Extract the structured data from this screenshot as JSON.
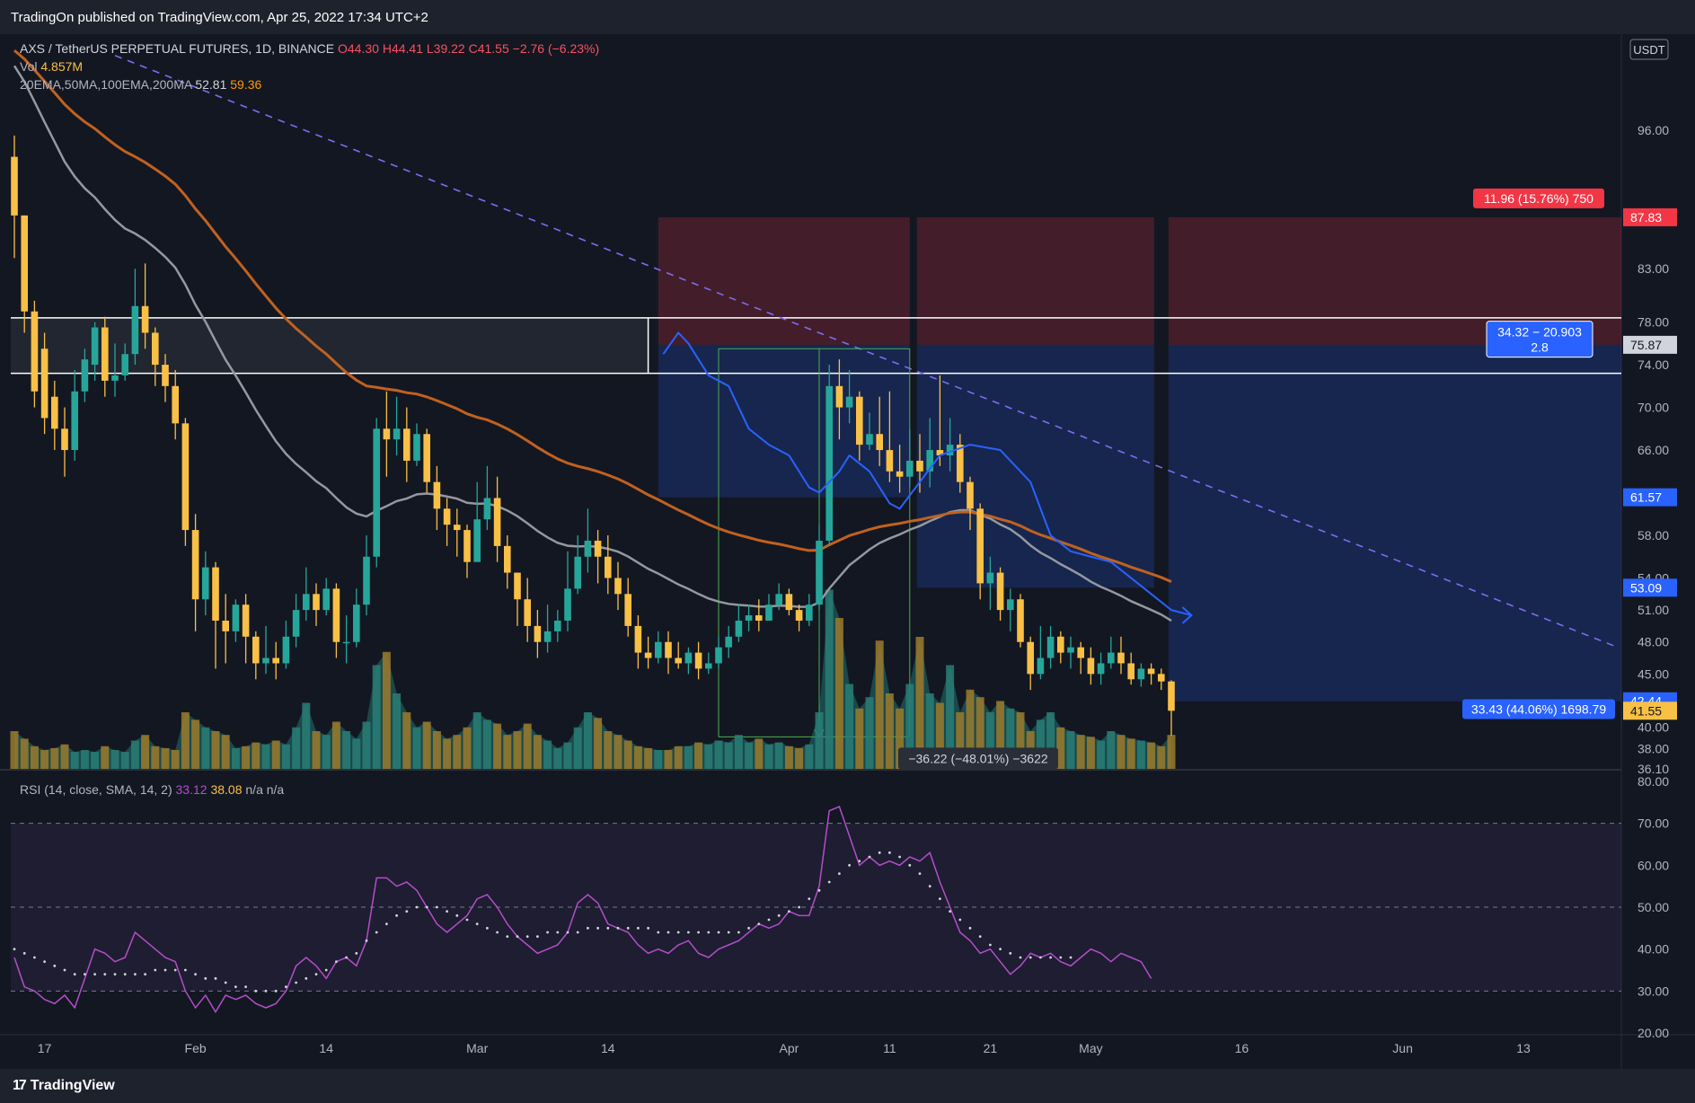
{
  "header": {
    "published": "TradingOn published on TradingView.com, Apr 25, 2022 17:34 UTC+2"
  },
  "footer": {
    "brand": "TradingView"
  },
  "legend": {
    "symbol": "AXS / TetherUS PERPETUAL FUTURES, 1D, BINANCE",
    "o": "O44.30",
    "h": "H44.41",
    "l": "L39.22",
    "c": "C41.55",
    "chg": "−2.76 (−6.23%)",
    "vol_label": "Vol",
    "vol_value": "4.857M",
    "ma_label": "20EMA,50MA,100EMA,200MA",
    "ma_v1": "52.81",
    "ma_v2": "59.36",
    "rsi_label": "RSI (14, close, SMA, 14, 2)",
    "rsi_v1": "33.12",
    "rsi_v2": "38.08",
    "rsi_na": "n/a n/a"
  },
  "chart_data": {
    "type": "candlestick",
    "currency": "USDT",
    "y_range": [
      36.1,
      104.5
    ],
    "y_ticks": [
      {
        "v": 96,
        "t": "96.00"
      },
      {
        "v": 83,
        "t": "83.00"
      },
      {
        "v": 78,
        "t": "78.00"
      },
      {
        "v": 74,
        "t": "74.00"
      },
      {
        "v": 70,
        "t": "70.00"
      },
      {
        "v": 66,
        "t": "66.00"
      },
      {
        "v": 58,
        "t": "58.00"
      },
      {
        "v": 54,
        "t": "54.00"
      },
      {
        "v": 51,
        "t": "51.00"
      },
      {
        "v": 48,
        "t": "48.00"
      },
      {
        "v": 45,
        "t": "45.00"
      },
      {
        "v": 40,
        "t": "40.00"
      },
      {
        "v": 38,
        "t": "38.00"
      },
      {
        "v": 36.1,
        "t": "36.10"
      }
    ],
    "price_labels": [
      {
        "v": 87.83,
        "t": "87.83",
        "color": "#f23645"
      },
      {
        "v": 75.87,
        "t": "75.87",
        "color": "#d1d4dc"
      },
      {
        "v": 61.57,
        "t": "61.57",
        "color": "#2962ff"
      },
      {
        "v": 53.09,
        "t": "53.09",
        "color": "#2962ff"
      },
      {
        "v": 42.44,
        "t": "42.44",
        "color": "#2962ff"
      },
      {
        "v": 41.55,
        "t": "41.55",
        "color": "#f9c046"
      }
    ],
    "x_ticks": [
      {
        "d": 3,
        "t": "17"
      },
      {
        "d": 18,
        "t": "Feb"
      },
      {
        "d": 31,
        "t": "14"
      },
      {
        "d": 46,
        "t": "Mar"
      },
      {
        "d": 59,
        "t": "14"
      },
      {
        "d": 77,
        "t": "Apr"
      },
      {
        "d": 87,
        "t": "11"
      },
      {
        "d": 97,
        "t": "21"
      },
      {
        "d": 107,
        "t": "May"
      },
      {
        "d": 122,
        "t": "16"
      },
      {
        "d": 138,
        "t": "Jun"
      },
      {
        "d": 150,
        "t": "13"
      }
    ],
    "candles": [
      [
        93.5,
        88.0,
        95.5,
        84.0
      ],
      [
        88.0,
        79.0,
        88.0,
        77.0
      ],
      [
        79.0,
        71.5,
        80.0,
        70.0
      ],
      [
        75.5,
        69.0,
        77.0,
        67.5
      ],
      [
        71.0,
        68.0,
        72.5,
        66.0
      ],
      [
        68.0,
        66.0,
        70.0,
        63.5
      ],
      [
        66.0,
        71.5,
        73.5,
        65.0
      ],
      [
        71.5,
        74.5,
        75.5,
        70.5
      ],
      [
        74.0,
        77.5,
        78.0,
        72.5
      ],
      [
        77.5,
        72.5,
        78.5,
        71.0
      ],
      [
        72.5,
        73.0,
        76.0,
        71.0
      ],
      [
        73.0,
        75.0,
        76.0,
        72.5
      ],
      [
        75.0,
        79.5,
        83.0,
        74.0
      ],
      [
        79.5,
        77.0,
        83.5,
        75.5
      ],
      [
        77.0,
        74.0,
        77.5,
        72.0
      ],
      [
        74.0,
        72.0,
        75.0,
        70.5
      ],
      [
        72.0,
        68.5,
        73.5,
        67.0
      ],
      [
        68.5,
        58.5,
        69.0,
        57.0
      ],
      [
        58.5,
        52.0,
        60.0,
        49.0
      ],
      [
        52.0,
        55.0,
        56.5,
        50.5
      ],
      [
        55.0,
        50.0,
        55.5,
        45.5
      ],
      [
        50.0,
        49.0,
        52.5,
        46.0
      ],
      [
        49.0,
        51.5,
        52.0,
        48.0
      ],
      [
        51.5,
        48.5,
        52.5,
        46.0
      ],
      [
        48.5,
        46.0,
        49.0,
        44.5
      ],
      [
        46.0,
        46.5,
        49.5,
        45.0
      ],
      [
        46.5,
        46.0,
        48.0,
        44.5
      ],
      [
        46.0,
        48.5,
        50.0,
        45.5
      ],
      [
        48.5,
        51.0,
        52.5,
        47.5
      ],
      [
        51.0,
        52.5,
        55.0,
        50.0
      ],
      [
        52.5,
        51.0,
        53.5,
        49.5
      ],
      [
        51.0,
        53.0,
        54.0,
        50.5
      ],
      [
        53.0,
        48.0,
        53.5,
        46.5
      ],
      [
        48.0,
        48.0,
        50.5,
        46.0
      ],
      [
        48.0,
        51.5,
        53.0,
        47.5
      ],
      [
        51.5,
        56.0,
        58.0,
        50.5
      ],
      [
        56.0,
        68.0,
        69.0,
        55.0
      ],
      [
        68.0,
        67.0,
        71.5,
        63.5
      ],
      [
        67.0,
        68.0,
        71.0,
        65.5
      ],
      [
        68.0,
        65.0,
        70.0,
        63.0
      ],
      [
        65.0,
        67.5,
        68.5,
        64.5
      ],
      [
        67.5,
        63.0,
        68.0,
        62.0
      ],
      [
        63.0,
        60.5,
        64.5,
        58.5
      ],
      [
        60.5,
        59.0,
        61.5,
        57.0
      ],
      [
        59.0,
        58.5,
        60.5,
        56.0
      ],
      [
        58.5,
        55.5,
        59.0,
        54.0
      ],
      [
        55.5,
        59.5,
        63.0,
        55.5
      ],
      [
        59.5,
        61.5,
        64.5,
        58.5
      ],
      [
        61.5,
        57.0,
        63.5,
        55.5
      ],
      [
        57.0,
        54.5,
        58.0,
        53.0
      ],
      [
        54.5,
        52.0,
        54.5,
        49.5
      ],
      [
        52.0,
        49.5,
        54.0,
        48.0
      ],
      [
        49.5,
        48.0,
        51.0,
        46.5
      ],
      [
        48.0,
        49.0,
        51.5,
        47.0
      ],
      [
        49.0,
        50.0,
        51.0,
        48.0
      ],
      [
        50.0,
        53.0,
        56.5,
        49.0
      ],
      [
        53.0,
        56.0,
        58.0,
        52.5
      ],
      [
        56.0,
        57.5,
        60.5,
        54.5
      ],
      [
        57.5,
        56.0,
        58.5,
        53.5
      ],
      [
        56.0,
        54.0,
        58.0,
        52.5
      ],
      [
        54.0,
        52.5,
        55.5,
        51.0
      ],
      [
        52.5,
        49.5,
        54.0,
        48.5
      ],
      [
        49.5,
        47.0,
        50.5,
        45.5
      ],
      [
        47.0,
        46.5,
        48.5,
        45.5
      ],
      [
        46.5,
        48.0,
        49.0,
        46.0
      ],
      [
        48.0,
        46.5,
        49.0,
        45.0
      ],
      [
        46.5,
        46.0,
        48.0,
        45.5
      ],
      [
        46.0,
        47.0,
        47.5,
        45.0
      ],
      [
        47.0,
        45.5,
        48.0,
        44.5
      ],
      [
        45.5,
        46.0,
        47.0,
        45.0
      ],
      [
        46.0,
        47.5,
        48.5,
        45.5
      ],
      [
        47.5,
        48.5,
        49.5,
        46.5
      ],
      [
        48.5,
        50.0,
        51.5,
        48.0
      ],
      [
        50.0,
        50.5,
        51.5,
        49.0
      ],
      [
        50.5,
        50.0,
        52.0,
        49.0
      ],
      [
        50.0,
        51.5,
        52.5,
        50.0
      ],
      [
        51.5,
        52.5,
        53.5,
        51.0
      ],
      [
        52.5,
        51.0,
        53.0,
        50.5
      ],
      [
        51.0,
        50.0,
        51.5,
        49.0
      ],
      [
        50.0,
        51.5,
        52.5,
        49.5
      ],
      [
        51.5,
        57.5,
        59.0,
        51.0
      ],
      [
        57.5,
        72.0,
        74.0,
        57.0
      ],
      [
        72.0,
        70.0,
        74.5,
        67.0
      ],
      [
        70.0,
        71.0,
        73.5,
        68.5
      ],
      [
        71.0,
        66.5,
        71.5,
        65.0
      ],
      [
        66.5,
        67.5,
        69.5,
        66.0
      ],
      [
        67.5,
        66.0,
        71.0,
        64.5
      ],
      [
        66.0,
        64.0,
        71.5,
        63.0
      ],
      [
        64.0,
        63.5,
        66.5,
        62.0
      ],
      [
        63.5,
        65.0,
        68.0,
        62.5
      ],
      [
        65.0,
        64.0,
        67.5,
        62.0
      ],
      [
        64.0,
        66.0,
        69.0,
        62.5
      ],
      [
        66.0,
        65.5,
        73.0,
        64.5
      ],
      [
        65.5,
        66.5,
        69.0,
        64.0
      ],
      [
        66.5,
        63.0,
        67.5,
        62.0
      ],
      [
        63.0,
        60.5,
        63.5,
        58.5
      ],
      [
        60.5,
        53.5,
        61.0,
        52.0
      ],
      [
        53.5,
        54.5,
        56.0,
        51.0
      ],
      [
        54.5,
        51.0,
        55.0,
        50.0
      ],
      [
        51.0,
        52.0,
        53.0,
        49.0
      ],
      [
        52.0,
        48.0,
        52.5,
        47.5
      ],
      [
        48.0,
        45.0,
        48.5,
        43.5
      ],
      [
        45.0,
        46.5,
        49.5,
        44.5
      ],
      [
        46.5,
        48.5,
        49.5,
        45.5
      ],
      [
        48.5,
        47.0,
        49.0,
        46.0
      ],
      [
        47.0,
        47.5,
        48.5,
        45.5
      ],
      [
        47.5,
        46.5,
        48.0,
        45.0
      ],
      [
        46.5,
        45.0,
        47.5,
        44.0
      ],
      [
        45.0,
        46.0,
        47.0,
        44.0
      ],
      [
        46.0,
        47.0,
        48.5,
        45.5
      ],
      [
        47.0,
        46.0,
        48.5,
        45.0
      ],
      [
        46.0,
        44.5,
        47.0,
        44.0
      ],
      [
        44.5,
        45.5,
        46.0,
        43.8
      ],
      [
        45.5,
        45.0,
        46.0,
        44.0
      ],
      [
        45.0,
        44.3,
        45.5,
        43.5
      ],
      [
        44.3,
        41.55,
        44.41,
        39.22
      ]
    ],
    "volume": [
      0.2,
      0.16,
      0.12,
      0.1,
      0.11,
      0.13,
      0.09,
      0.1,
      0.09,
      0.12,
      0.1,
      0.09,
      0.15,
      0.18,
      0.12,
      0.11,
      0.1,
      0.3,
      0.26,
      0.22,
      0.2,
      0.18,
      0.11,
      0.12,
      0.14,
      0.13,
      0.15,
      0.13,
      0.22,
      0.35,
      0.2,
      0.18,
      0.25,
      0.2,
      0.16,
      0.25,
      0.55,
      0.62,
      0.4,
      0.3,
      0.22,
      0.25,
      0.2,
      0.16,
      0.18,
      0.22,
      0.3,
      0.26,
      0.24,
      0.18,
      0.2,
      0.24,
      0.18,
      0.15,
      0.11,
      0.14,
      0.22,
      0.3,
      0.27,
      0.2,
      0.18,
      0.15,
      0.12,
      0.11,
      0.1,
      0.1,
      0.12,
      0.12,
      0.14,
      0.13,
      0.15,
      0.14,
      0.18,
      0.14,
      0.16,
      0.13,
      0.14,
      0.12,
      0.11,
      0.13,
      0.3,
      0.95,
      0.8,
      0.45,
      0.32,
      0.38,
      0.68,
      0.4,
      0.32,
      0.45,
      0.7,
      0.4,
      0.35,
      0.55,
      0.3,
      0.42,
      0.38,
      0.3,
      0.36,
      0.32,
      0.3,
      0.2,
      0.26,
      0.3,
      0.22,
      0.2,
      0.18,
      0.17,
      0.15,
      0.2,
      0.18,
      0.16,
      0.15,
      0.14,
      0.12,
      0.18
    ],
    "rsi_range": [
      20,
      80
    ],
    "rsi_ticks": [
      {
        "v": 80,
        "t": "80.00"
      },
      {
        "v": 70,
        "t": "70.00"
      },
      {
        "v": 60,
        "t": "60.00"
      },
      {
        "v": 50,
        "t": "50.00"
      },
      {
        "v": 40,
        "t": "40.00"
      },
      {
        "v": 30,
        "t": "30.00"
      },
      {
        "v": 20,
        "t": "20.00"
      }
    ],
    "rsi": [
      38,
      31,
      30,
      28,
      27,
      29,
      26,
      33,
      40,
      39,
      37,
      38,
      44,
      42,
      40,
      38,
      37,
      30,
      26,
      29,
      25,
      29,
      28,
      29,
      27,
      26,
      27,
      30,
      36,
      38,
      36,
      33,
      37,
      38,
      36,
      42,
      57,
      57,
      55,
      56,
      54,
      50,
      46,
      44,
      46,
      48,
      52,
      53,
      50,
      46,
      43,
      41,
      39,
      40,
      41,
      44,
      51,
      53,
      51,
      46,
      45,
      44,
      41,
      39,
      40,
      39,
      41,
      42,
      39,
      38,
      40,
      41,
      42,
      44,
      46,
      45,
      46,
      49,
      48,
      48,
      55,
      73,
      74,
      67,
      60,
      62,
      60,
      61,
      60,
      62,
      61,
      63,
      56,
      50,
      44,
      42,
      39,
      40,
      37,
      34,
      36,
      39,
      38,
      39,
      37,
      36,
      38,
      40,
      39,
      37,
      39,
      38,
      37,
      33
    ],
    "rsi_sma": [
      40,
      39,
      38,
      37,
      36,
      35,
      34,
      34,
      34,
      34,
      34,
      34,
      34,
      34,
      35,
      35,
      35,
      35,
      34,
      33,
      33,
      32,
      31,
      31,
      30,
      30,
      30,
      31,
      32,
      33,
      34,
      35,
      37,
      38,
      39,
      42,
      44,
      46,
      48,
      49,
      50,
      50,
      50,
      49,
      48,
      47,
      46,
      45,
      44,
      43,
      43,
      43,
      43,
      44,
      44,
      44,
      44,
      45,
      45,
      45,
      45,
      45,
      45,
      45,
      44,
      44,
      44,
      44,
      44,
      44,
      44,
      44,
      44,
      45,
      46,
      47,
      48,
      49,
      50,
      52,
      54,
      56,
      58,
      60,
      61,
      62,
      63,
      63,
      62,
      60,
      58,
      55,
      52,
      49,
      47,
      45,
      43,
      41,
      40,
      39,
      38,
      38,
      38,
      38,
      38,
      38
    ],
    "trade_box_1": {
      "label": "11.96 (15.76%) 750"
    },
    "trade_box_2": {
      "label_l1": "34.32 − 20.903",
      "label_l2": "2.8"
    },
    "trade_box_3": {
      "label": "33.43 (44.06%) 1698.79"
    },
    "range_measure": {
      "label": "−36.22 (−48.01%) −3622"
    }
  }
}
